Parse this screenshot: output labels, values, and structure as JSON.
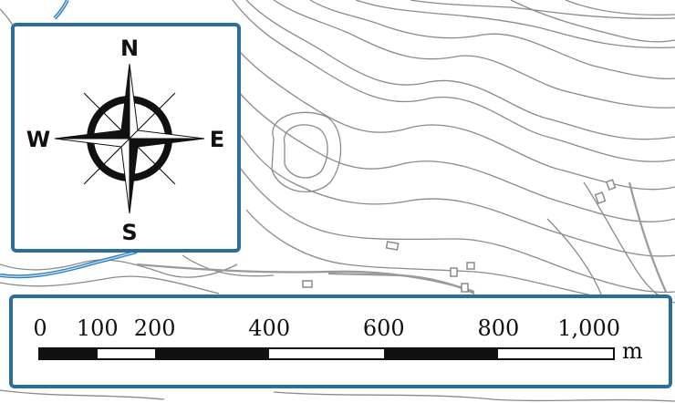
{
  "map": {
    "contour_color": "#8a8a8a",
    "river_color": "#2e7fbf",
    "road_color": "#9a9a9a",
    "frame_color": "#2b6e9a"
  },
  "compass": {
    "north": "N",
    "south": "S",
    "east": "E",
    "west": "W"
  },
  "scale_bar": {
    "ticks": [
      "0",
      "100",
      "200",
      "400",
      "600",
      "800",
      "1,000"
    ],
    "tick_values": [
      0,
      100,
      200,
      400,
      600,
      800,
      1000
    ],
    "unit": "m",
    "segment_colors": [
      "black",
      "white",
      "black",
      "white",
      "black",
      "white"
    ]
  }
}
